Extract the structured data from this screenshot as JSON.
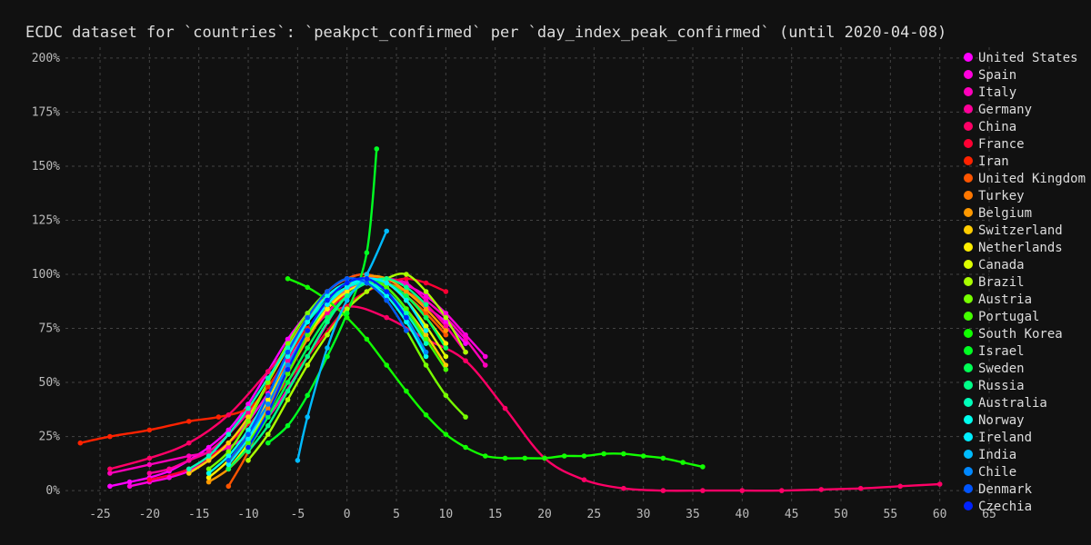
{
  "chart_data": {
    "type": "scatter",
    "title": "ECDC dataset for `countries`: `peakpct_confirmed` per `day_index_peak_confirmed` (until 2020-04-08)",
    "xlabel": "",
    "ylabel": "",
    "xlim": [
      -28.5,
      65
    ],
    "ylim": [
      -5,
      205
    ],
    "x_ticks": [
      -25,
      -20,
      -15,
      -10,
      -5,
      0,
      5,
      10,
      15,
      20,
      25,
      30,
      35,
      40,
      45,
      50,
      55,
      60,
      65
    ],
    "y_ticks": [
      0,
      25,
      50,
      75,
      100,
      125,
      150,
      175,
      200
    ],
    "y_tick_suffix": "%",
    "grid": true,
    "legend_position": "right",
    "series": [
      {
        "name": "United States",
        "color": "#ff00ff",
        "x": [
          -24,
          -22,
          -20,
          -18,
          -16,
          -14,
          -12,
          -10,
          -8,
          -6,
          -4,
          -2,
          0,
          2,
          4,
          6,
          8,
          10,
          12
        ],
        "y": [
          2,
          4,
          6,
          9,
          14,
          20,
          28,
          40,
          55,
          70,
          82,
          92,
          98,
          100,
          96,
          92,
          85,
          78,
          68
        ]
      },
      {
        "name": "Spain",
        "color": "#ff00dd",
        "x": [
          -22,
          -20,
          -18,
          -16,
          -14,
          -12,
          -10,
          -8,
          -6,
          -4,
          -2,
          0,
          2,
          4,
          6,
          8,
          10,
          12,
          14
        ],
        "y": [
          2,
          4,
          6,
          9,
          14,
          22,
          32,
          45,
          60,
          74,
          85,
          93,
          98,
          98,
          95,
          90,
          82,
          72,
          62
        ]
      },
      {
        "name": "Italy",
        "color": "#ff00bb",
        "x": [
          -24,
          -20,
          -16,
          -12,
          -8,
          -4,
          0,
          2,
          4,
          6,
          8,
          10,
          12,
          14
        ],
        "y": [
          8,
          12,
          16,
          20,
          34,
          62,
          92,
          98,
          98,
          96,
          88,
          80,
          70,
          58
        ]
      },
      {
        "name": "Germany",
        "color": "#ff0099",
        "x": [
          -20,
          -18,
          -16,
          -14,
          -12,
          -10,
          -8,
          -6,
          -4,
          -2,
          0,
          2,
          4,
          6,
          8,
          10,
          12
        ],
        "y": [
          8,
          10,
          14,
          18,
          26,
          36,
          48,
          60,
          72,
          82,
          92,
          96,
          96,
          92,
          86,
          76,
          64
        ]
      },
      {
        "name": "China",
        "color": "#ff0066",
        "x": [
          -24,
          -20,
          -16,
          -12,
          -8,
          -4,
          0,
          4,
          8,
          12,
          16,
          20,
          24,
          28,
          32,
          36,
          40,
          44,
          48,
          52,
          56,
          60
        ],
        "y": [
          10,
          15,
          22,
          35,
          55,
          75,
          85,
          80,
          70,
          60,
          38,
          15,
          5,
          1,
          0,
          0,
          0,
          0,
          0.5,
          1,
          2,
          3
        ]
      },
      {
        "name": "France",
        "color": "#ff0033",
        "x": [
          -20,
          -16,
          -12,
          -8,
          -4,
          0,
          2,
          4,
          6,
          8,
          10
        ],
        "y": [
          5,
          10,
          22,
          40,
          62,
          85,
          92,
          96,
          98,
          96,
          92
        ]
      },
      {
        "name": "Iran",
        "color": "#ff2200",
        "x": [
          -27,
          -24,
          -20,
          -16,
          -13,
          -10,
          -8,
          -6,
          -4,
          -2,
          0
        ],
        "y": [
          22,
          25,
          28,
          32,
          34,
          38,
          48,
          62,
          75,
          85,
          90
        ]
      },
      {
        "name": "United Kingdom",
        "color": "#ff5500",
        "x": [
          -12,
          -10,
          -8,
          -6,
          -4,
          -2,
          0,
          2,
          4,
          6,
          8,
          10
        ],
        "y": [
          2,
          18,
          40,
          62,
          80,
          92,
          98,
          100,
          96,
          90,
          82,
          72
        ]
      },
      {
        "name": "Turkey",
        "color": "#ff7700",
        "x": [
          -10,
          -8,
          -6,
          -4,
          -2,
          0,
          2,
          4,
          6,
          8
        ],
        "y": [
          20,
          38,
          58,
          74,
          86,
          94,
          98,
          96,
          92,
          86
        ]
      },
      {
        "name": "Belgium",
        "color": "#ff9900",
        "x": [
          -14,
          -12,
          -10,
          -8,
          -6,
          -4,
          -2,
          0,
          2,
          4,
          6,
          8,
          10
        ],
        "y": [
          4,
          10,
          20,
          36,
          54,
          70,
          84,
          94,
          99,
          98,
          92,
          84,
          74
        ]
      },
      {
        "name": "Switzerland",
        "color": "#ffcc00",
        "x": [
          -16,
          -14,
          -12,
          -10,
          -8,
          -6,
          -4,
          -2,
          0,
          2,
          4,
          6,
          8,
          10
        ],
        "y": [
          8,
          14,
          22,
          34,
          50,
          66,
          80,
          90,
          96,
          98,
          94,
          84,
          72,
          58
        ]
      },
      {
        "name": "Netherlands",
        "color": "#ffee00",
        "x": [
          -14,
          -12,
          -10,
          -8,
          -6,
          -4,
          -2,
          0,
          2,
          4,
          6,
          8,
          10
        ],
        "y": [
          6,
          14,
          26,
          42,
          58,
          72,
          84,
          92,
          96,
          96,
          90,
          80,
          68
        ]
      },
      {
        "name": "Canada",
        "color": "#ddff00",
        "x": [
          -12,
          -10,
          -8,
          -6,
          -4,
          -2,
          0,
          2,
          4,
          6,
          8,
          10
        ],
        "y": [
          10,
          22,
          40,
          58,
          74,
          86,
          94,
          98,
          96,
          88,
          76,
          62
        ]
      },
      {
        "name": "Brazil",
        "color": "#aaff00",
        "x": [
          -10,
          -8,
          -6,
          -4,
          -2,
          0,
          2,
          4,
          6,
          8,
          10,
          12
        ],
        "y": [
          14,
          26,
          42,
          58,
          72,
          84,
          92,
          98,
          100,
          92,
          80,
          64
        ]
      },
      {
        "name": "Austria",
        "color": "#77ff00",
        "x": [
          -14,
          -12,
          -10,
          -8,
          -6,
          -4,
          -2,
          0,
          2,
          4,
          6,
          8,
          10,
          12
        ],
        "y": [
          10,
          18,
          32,
          50,
          68,
          82,
          92,
          98,
          96,
          88,
          74,
          58,
          44,
          34
        ]
      },
      {
        "name": "Portugal",
        "color": "#44ff00",
        "x": [
          -10,
          -8,
          -6,
          -4,
          -2,
          0,
          2,
          4,
          6,
          8,
          10
        ],
        "y": [
          22,
          36,
          54,
          72,
          86,
          94,
          98,
          94,
          84,
          70,
          56
        ]
      },
      {
        "name": "South Korea",
        "color": "#11ff00",
        "x": [
          -6,
          -4,
          -2,
          0,
          2,
          4,
          6,
          8,
          10,
          12,
          14,
          16,
          18,
          20,
          22,
          24,
          26,
          28,
          30,
          32,
          34,
          36
        ],
        "y": [
          98,
          94,
          88,
          80,
          70,
          58,
          46,
          35,
          26,
          20,
          16,
          15,
          15,
          15,
          16,
          16,
          17,
          17,
          16,
          15,
          13,
          11
        ]
      },
      {
        "name": "Israel",
        "color": "#00ff22",
        "x": [
          -8,
          -6,
          -4,
          -2,
          0,
          2,
          3
        ],
        "y": [
          22,
          30,
          44,
          62,
          82,
          110,
          158
        ]
      },
      {
        "name": "Sweden",
        "color": "#00ff55",
        "x": [
          -12,
          -10,
          -8,
          -6,
          -4,
          -2,
          0,
          2,
          4,
          6,
          8,
          10
        ],
        "y": [
          10,
          20,
          34,
          50,
          66,
          80,
          90,
          96,
          96,
          90,
          80,
          66
        ]
      },
      {
        "name": "Russia",
        "color": "#00ff88",
        "x": [
          -10,
          -8,
          -6,
          -4,
          -2,
          0,
          2,
          4,
          6,
          8
        ],
        "y": [
          18,
          30,
          46,
          62,
          78,
          90,
          96,
          98,
          94,
          86
        ]
      },
      {
        "name": "Australia",
        "color": "#00ffbb",
        "x": [
          -16,
          -14,
          -12,
          -10,
          -8,
          -6,
          -4,
          -2,
          0,
          2,
          4,
          6,
          8
        ],
        "y": [
          10,
          16,
          26,
          38,
          52,
          66,
          78,
          88,
          94,
          96,
          92,
          82,
          68
        ]
      },
      {
        "name": "Norway",
        "color": "#00ffee",
        "x": [
          -14,
          -12,
          -10,
          -8,
          -6,
          -4,
          -2,
          0,
          2,
          4,
          6,
          8
        ],
        "y": [
          8,
          16,
          28,
          44,
          62,
          78,
          90,
          96,
          96,
          90,
          78,
          62
        ]
      },
      {
        "name": "Ireland",
        "color": "#00eeff",
        "x": [
          -12,
          -10,
          -8,
          -6,
          -4,
          -2,
          0,
          2,
          4,
          6,
          8
        ],
        "y": [
          12,
          24,
          40,
          58,
          74,
          86,
          94,
          98,
          96,
          88,
          74
        ]
      },
      {
        "name": "India",
        "color": "#00bbff",
        "x": [
          -5,
          -4,
          -2,
          0,
          2,
          4
        ],
        "y": [
          14,
          34,
          66,
          88,
          100,
          120
        ]
      },
      {
        "name": "Chile",
        "color": "#0088ff",
        "x": [
          -10,
          -8,
          -6,
          -4,
          -2,
          0,
          2,
          4,
          6,
          8
        ],
        "y": [
          26,
          40,
          58,
          74,
          88,
          96,
          98,
          92,
          80,
          64
        ]
      },
      {
        "name": "Denmark",
        "color": "#0055ff",
        "x": [
          -12,
          -10,
          -8,
          -6,
          -4,
          -2,
          0,
          2,
          4,
          6
        ],
        "y": [
          14,
          26,
          44,
          64,
          80,
          92,
          98,
          96,
          88,
          74
        ]
      },
      {
        "name": "Czechia",
        "color": "#0022ff",
        "x": [
          -10,
          -8,
          -6,
          -4,
          -2,
          0,
          2,
          4,
          6
        ],
        "y": [
          20,
          36,
          56,
          74,
          88,
          96,
          98,
          92,
          80
        ]
      }
    ]
  }
}
